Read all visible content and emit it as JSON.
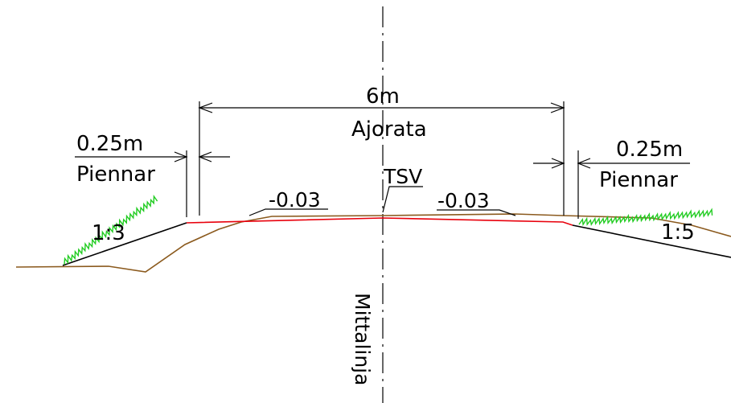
{
  "labels": {
    "road_width": "6m",
    "road_width_caption": "Ajorata",
    "left_shoulder_width": "0.25m",
    "left_shoulder_caption": "Piennar",
    "right_shoulder_width": "0.25m",
    "right_shoulder_caption": "Piennar",
    "left_slope_grade": "-0.03",
    "right_slope_grade": "-0.03",
    "design_point": "TSV",
    "left_embankment_ratio": "1:3",
    "right_embankment_ratio": "1:5",
    "centerline_caption": "Mittalinja"
  },
  "colors": {
    "design_line": "#e8000c",
    "ground_line": "#8b5a1e",
    "grass": "#22cc22",
    "dimension": "#000000"
  }
}
